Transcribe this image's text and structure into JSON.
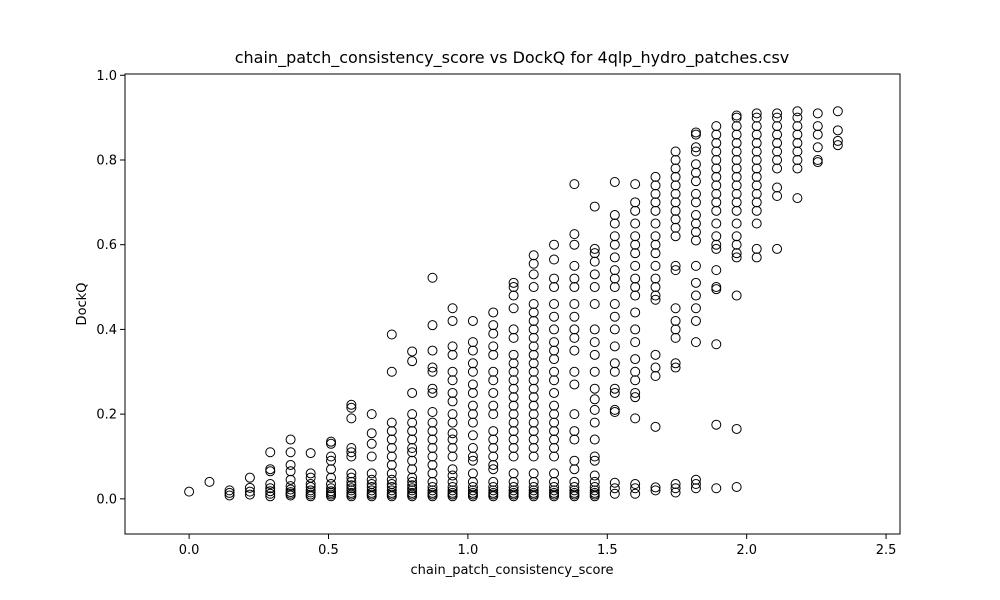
{
  "chart_data": {
    "type": "scatter",
    "title": "chain_patch_consistency_score vs DockQ for 4qlp_hydro_patches.csv",
    "xlabel": "chain_patch_consistency_score",
    "ylabel": "DockQ",
    "xlim": [
      -0.23,
      2.55
    ],
    "ylim": [
      -0.083,
      1.003
    ],
    "xticks": [
      0.0,
      0.5,
      1.0,
      1.5,
      2.0,
      2.5
    ],
    "xtick_labels": [
      "0.0",
      "0.5",
      "1.0",
      "1.5",
      "2.0",
      "2.5"
    ],
    "yticks": [
      0.0,
      0.2,
      0.4,
      0.6,
      0.8,
      1.0
    ],
    "ytick_labels": [
      "0.0",
      "0.2",
      "0.4",
      "0.6",
      "0.8",
      "1.0"
    ],
    "grid": false,
    "marker": "open-circle",
    "marker_color": "#000000",
    "series": [
      {
        "columns": [
          {
            "x": 0.0,
            "y": [
              0.017
            ]
          },
          {
            "x": 0.073,
            "y": [
              0.04
            ]
          },
          {
            "x": 0.145,
            "y": [
              0.008,
              0.014,
              0.02
            ]
          },
          {
            "x": 0.218,
            "y": [
              0.01,
              0.017,
              0.026,
              0.05
            ]
          },
          {
            "x": 0.291,
            "y": [
              0.006,
              0.012,
              0.018,
              0.025,
              0.035,
              0.065,
              0.07,
              0.11
            ]
          },
          {
            "x": 0.364,
            "y": [
              0.008,
              0.012,
              0.016,
              0.022,
              0.03,
              0.045,
              0.065,
              0.08,
              0.11,
              0.14
            ]
          },
          {
            "x": 0.436,
            "y": [
              0.006,
              0.01,
              0.015,
              0.02,
              0.028,
              0.035,
              0.05,
              0.06,
              0.108
            ]
          },
          {
            "x": 0.509,
            "y": [
              0.006,
              0.01,
              0.014,
              0.018,
              0.025,
              0.035,
              0.05,
              0.07,
              0.09,
              0.1,
              0.13,
              0.135
            ]
          },
          {
            "x": 0.582,
            "y": [
              0.006,
              0.01,
              0.014,
              0.02,
              0.025,
              0.032,
              0.04,
              0.05,
              0.06,
              0.1,
              0.11,
              0.12,
              0.19,
              0.215,
              0.222
            ]
          },
          {
            "x": 0.655,
            "y": [
              0.006,
              0.01,
              0.014,
              0.02,
              0.028,
              0.035,
              0.045,
              0.06,
              0.1,
              0.13,
              0.155,
              0.2
            ]
          },
          {
            "x": 0.727,
            "y": [
              0.006,
              0.01,
              0.014,
              0.02,
              0.028,
              0.035,
              0.045,
              0.06,
              0.08,
              0.1,
              0.12,
              0.14,
              0.16,
              0.18,
              0.3,
              0.388
            ]
          },
          {
            "x": 0.8,
            "y": [
              0.006,
              0.01,
              0.014,
              0.02,
              0.025,
              0.032,
              0.04,
              0.05,
              0.07,
              0.09,
              0.11,
              0.12,
              0.14,
              0.16,
              0.18,
              0.2,
              0.25,
              0.325,
              0.348
            ]
          },
          {
            "x": 0.873,
            "y": [
              0.006,
              0.01,
              0.014,
              0.02,
              0.028,
              0.04,
              0.06,
              0.08,
              0.1,
              0.12,
              0.14,
              0.16,
              0.18,
              0.205,
              0.25,
              0.26,
              0.3,
              0.31,
              0.35,
              0.41,
              0.522
            ]
          },
          {
            "x": 0.945,
            "y": [
              0.006,
              0.01,
              0.014,
              0.02,
              0.028,
              0.04,
              0.055,
              0.07,
              0.1,
              0.12,
              0.14,
              0.155,
              0.18,
              0.2,
              0.23,
              0.25,
              0.28,
              0.3,
              0.34,
              0.36,
              0.42,
              0.45
            ]
          },
          {
            "x": 1.018,
            "y": [
              0.006,
              0.01,
              0.014,
              0.02,
              0.028,
              0.04,
              0.06,
              0.09,
              0.1,
              0.12,
              0.15,
              0.18,
              0.2,
              0.22,
              0.25,
              0.27,
              0.3,
              0.32,
              0.35,
              0.37,
              0.42
            ]
          },
          {
            "x": 1.091,
            "y": [
              0.006,
              0.01,
              0.014,
              0.02,
              0.028,
              0.04,
              0.07,
              0.08,
              0.1,
              0.12,
              0.14,
              0.16,
              0.2,
              0.22,
              0.25,
              0.28,
              0.3,
              0.34,
              0.36,
              0.39,
              0.41,
              0.44
            ]
          },
          {
            "x": 1.164,
            "y": [
              0.006,
              0.01,
              0.014,
              0.02,
              0.028,
              0.04,
              0.06,
              0.1,
              0.12,
              0.14,
              0.16,
              0.18,
              0.2,
              0.22,
              0.24,
              0.26,
              0.28,
              0.3,
              0.32,
              0.34,
              0.38,
              0.4,
              0.45,
              0.48,
              0.5,
              0.51
            ]
          },
          {
            "x": 1.236,
            "y": [
              0.006,
              0.01,
              0.014,
              0.02,
              0.028,
              0.04,
              0.06,
              0.1,
              0.12,
              0.14,
              0.16,
              0.18,
              0.2,
              0.22,
              0.24,
              0.26,
              0.28,
              0.3,
              0.32,
              0.34,
              0.36,
              0.38,
              0.4,
              0.42,
              0.44,
              0.46,
              0.5,
              0.53,
              0.555,
              0.575
            ]
          },
          {
            "x": 1.309,
            "y": [
              0.006,
              0.01,
              0.014,
              0.02,
              0.028,
              0.04,
              0.06,
              0.1,
              0.12,
              0.14,
              0.16,
              0.18,
              0.2,
              0.22,
              0.25,
              0.28,
              0.3,
              0.33,
              0.35,
              0.37,
              0.4,
              0.43,
              0.46,
              0.5,
              0.52,
              0.565,
              0.6
            ]
          },
          {
            "x": 1.382,
            "y": [
              0.006,
              0.01,
              0.014,
              0.02,
              0.028,
              0.04,
              0.07,
              0.09,
              0.14,
              0.16,
              0.2,
              0.27,
              0.3,
              0.35,
              0.38,
              0.4,
              0.43,
              0.46,
              0.5,
              0.52,
              0.55,
              0.6,
              0.625,
              0.743
            ]
          },
          {
            "x": 1.455,
            "y": [
              0.006,
              0.01,
              0.014,
              0.02,
              0.028,
              0.04,
              0.055,
              0.09,
              0.1,
              0.14,
              0.18,
              0.21,
              0.235,
              0.26,
              0.3,
              0.34,
              0.37,
              0.4,
              0.46,
              0.5,
              0.53,
              0.56,
              0.58,
              0.59,
              0.69
            ]
          },
          {
            "x": 1.527,
            "y": [
              0.012,
              0.025,
              0.038,
              0.205,
              0.21,
              0.25,
              0.26,
              0.3,
              0.32,
              0.36,
              0.4,
              0.43,
              0.46,
              0.5,
              0.52,
              0.54,
              0.57,
              0.6,
              0.62,
              0.65,
              0.67,
              0.748
            ]
          },
          {
            "x": 1.6,
            "y": [
              0.012,
              0.025,
              0.035,
              0.19,
              0.24,
              0.25,
              0.28,
              0.3,
              0.33,
              0.37,
              0.4,
              0.44,
              0.48,
              0.5,
              0.52,
              0.55,
              0.58,
              0.6,
              0.62,
              0.65,
              0.68,
              0.7,
              0.743
            ]
          },
          {
            "x": 1.673,
            "y": [
              0.02,
              0.027,
              0.17,
              0.29,
              0.31,
              0.34,
              0.47,
              0.48,
              0.5,
              0.52,
              0.55,
              0.58,
              0.6,
              0.62,
              0.65,
              0.68,
              0.7,
              0.72,
              0.74,
              0.76
            ]
          },
          {
            "x": 1.745,
            "y": [
              0.015,
              0.025,
              0.035,
              0.31,
              0.32,
              0.38,
              0.4,
              0.42,
              0.45,
              0.54,
              0.55,
              0.62,
              0.64,
              0.66,
              0.68,
              0.7,
              0.72,
              0.74,
              0.76,
              0.78,
              0.8,
              0.82
            ]
          },
          {
            "x": 1.818,
            "y": [
              0.025,
              0.035,
              0.045,
              0.37,
              0.42,
              0.45,
              0.48,
              0.51,
              0.55,
              0.61,
              0.63,
              0.65,
              0.67,
              0.7,
              0.72,
              0.75,
              0.77,
              0.79,
              0.82,
              0.83,
              0.86,
              0.865
            ]
          },
          {
            "x": 1.891,
            "y": [
              0.025,
              0.175,
              0.365,
              0.495,
              0.5,
              0.54,
              0.59,
              0.6,
              0.62,
              0.65,
              0.68,
              0.7,
              0.72,
              0.74,
              0.76,
              0.78,
              0.8,
              0.82,
              0.84,
              0.86,
              0.88
            ]
          },
          {
            "x": 1.964,
            "y": [
              0.028,
              0.165,
              0.48,
              0.57,
              0.58,
              0.6,
              0.62,
              0.65,
              0.68,
              0.7,
              0.72,
              0.74,
              0.76,
              0.78,
              0.8,
              0.82,
              0.84,
              0.86,
              0.88,
              0.9,
              0.905
            ]
          },
          {
            "x": 2.036,
            "y": [
              0.57,
              0.59,
              0.65,
              0.68,
              0.7,
              0.72,
              0.74,
              0.76,
              0.78,
              0.8,
              0.82,
              0.84,
              0.86,
              0.88,
              0.9,
              0.91
            ]
          },
          {
            "x": 2.109,
            "y": [
              0.59,
              0.715,
              0.735,
              0.78,
              0.8,
              0.82,
              0.84,
              0.86,
              0.88,
              0.9,
              0.91
            ]
          },
          {
            "x": 2.182,
            "y": [
              0.71,
              0.78,
              0.8,
              0.82,
              0.84,
              0.86,
              0.88,
              0.9,
              0.915
            ]
          },
          {
            "x": 2.255,
            "y": [
              0.795,
              0.8,
              0.83,
              0.86,
              0.88,
              0.91
            ]
          },
          {
            "x": 2.327,
            "y": [
              0.835,
              0.845,
              0.87,
              0.915
            ]
          }
        ]
      }
    ]
  }
}
